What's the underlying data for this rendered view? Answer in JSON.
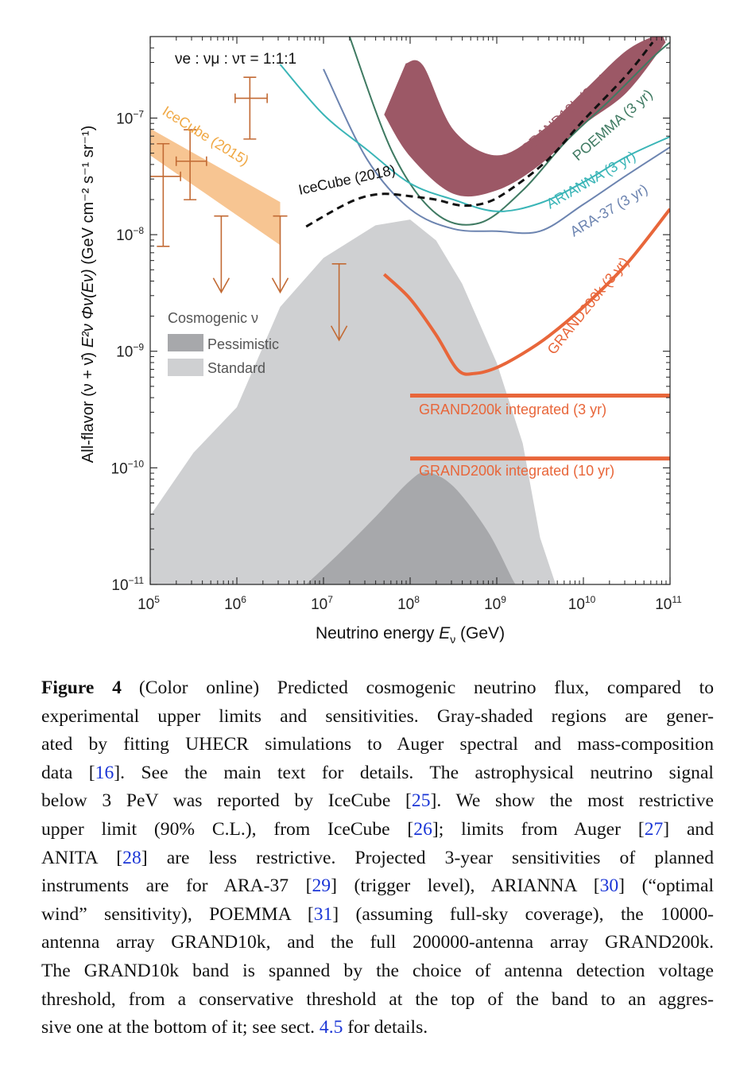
{
  "chart_data": {
    "type": "line",
    "xlabel_parts": {
      "pre": "Neutrino energy ",
      "var": "E",
      "sub": "ν",
      "post": " (GeV)"
    },
    "ylabel_parts": {
      "pre": "All-flavor  (ν + ν̄)  ",
      "expr": "E²ν Φν(Eν)",
      "post": "  (GeV cm⁻² s⁻¹ sr⁻¹)"
    },
    "xscale": "log",
    "yscale": "log",
    "xlim": [
      100000,
      100000000000
    ],
    "ylim": [
      1e-11,
      5e-07
    ],
    "x_ticks": [
      {
        "base": "10",
        "exp": "5",
        "value": 5
      },
      {
        "base": "10",
        "exp": "6",
        "value": 6
      },
      {
        "base": "10",
        "exp": "7",
        "value": 7
      },
      {
        "base": "10",
        "exp": "8",
        "value": 8
      },
      {
        "base": "10",
        "exp": "9",
        "value": 9
      },
      {
        "base": "10",
        "exp": "10",
        "value": 10
      },
      {
        "base": "10",
        "exp": "11",
        "value": 11
      }
    ],
    "y_ticks": [
      {
        "base": "10",
        "exp": "−11",
        "value": -11
      },
      {
        "base": "10",
        "exp": "−10",
        "value": -10
      },
      {
        "base": "10",
        "exp": "−9",
        "value": -9
      },
      {
        "base": "10",
        "exp": "−8",
        "value": -8
      },
      {
        "base": "10",
        "exp": "−7",
        "value": -7
      }
    ],
    "flavor_ratio": "νe : νμ : ντ = 1:1:1",
    "legend": {
      "title": "Cosmogenic ν",
      "placement": "center-left",
      "entries": [
        "Pessimistic",
        "Standard"
      ]
    },
    "colors": {
      "standard": "#cfd0d2",
      "pessimistic": "#a7a8ab",
      "icecube2015": "#f7c28c",
      "icecube2015_label": "#f0a844",
      "icecube_points": "#c26a34",
      "grand10k": "#9c5866",
      "grand200k": "#e8663a",
      "arianna": "#3ab5b7",
      "ara37": "#6c84b0",
      "poemma": "#3f7a62",
      "icecube2018": "#111111"
    },
    "series": [
      {
        "name": "Standard",
        "type": "area",
        "upper": [
          [
            5,
            -10.41
          ],
          [
            5.5,
            -9.87
          ],
          [
            6,
            -9.48
          ],
          [
            6.5,
            -8.62
          ],
          [
            7,
            -8.2
          ],
          [
            7.6,
            -7.92
          ],
          [
            8,
            -7.87
          ],
          [
            8.3,
            -8.05
          ],
          [
            8.6,
            -8.42
          ],
          [
            9,
            -9.1
          ],
          [
            9.3,
            -9.79
          ],
          [
            9.5,
            -10.6
          ],
          [
            9.68,
            -11
          ]
        ],
        "lower": -11
      },
      {
        "name": "Pessimistic",
        "type": "area",
        "upper": [
          [
            6.8,
            -11
          ],
          [
            7.2,
            -10.72
          ],
          [
            7.6,
            -10.42
          ],
          [
            8,
            -10.11
          ],
          [
            8.2,
            -10.04
          ],
          [
            8.5,
            -10.16
          ],
          [
            8.9,
            -10.55
          ],
          [
            9.2,
            -10.98
          ],
          [
            9.25,
            -11
          ]
        ],
        "lower": -11
      },
      {
        "name": "IceCube (2015)",
        "type": "band",
        "upper": [
          [
            5,
            -7.09
          ],
          [
            6.5,
            -7.72
          ]
        ],
        "lower": [
          [
            5,
            -7.32
          ],
          [
            6.5,
            -8.09
          ]
        ]
      },
      {
        "name": "IceCube HESE points",
        "type": "errorbars",
        "points": [
          {
            "x": 5.15,
            "y": -7.5,
            "xlo": 4.92,
            "xhi": 5.35,
            "ylo": -8.1,
            "yhi": -7.22
          },
          {
            "x": 5.46,
            "y": -7.37,
            "xlo": 5.3,
            "xhi": 5.65,
            "ylo": -7.7,
            "yhi": -7.1
          },
          {
            "x": 6.15,
            "y": -6.83,
            "xlo": 5.98,
            "xhi": 6.35,
            "ylo": -7.18,
            "yhi": -6.65
          }
        ],
        "upper_limits": [
          {
            "x": 5.82,
            "y": -7.84
          },
          {
            "x": 6.5,
            "y": -7.84
          },
          {
            "x": 7.18,
            "y": -8.25
          }
        ]
      },
      {
        "name": "IceCube (2018)",
        "type": "line",
        "style": "dashed",
        "points": [
          [
            6.8,
            -7.93
          ],
          [
            7.2,
            -7.76
          ],
          [
            7.45,
            -7.68
          ],
          [
            7.7,
            -7.65
          ],
          [
            8,
            -7.67
          ],
          [
            8.3,
            -7.7
          ],
          [
            8.6,
            -7.75
          ],
          [
            8.9,
            -7.72
          ],
          [
            9.2,
            -7.59
          ],
          [
            9.6,
            -7.35
          ],
          [
            10,
            -7.02
          ],
          [
            10.5,
            -6.63
          ],
          [
            10.8,
            -6.35
          ]
        ]
      },
      {
        "name": "ARIANNA (3 yr)",
        "type": "line",
        "points": [
          [
            6.5,
            -6.54
          ],
          [
            7,
            -6.97
          ],
          [
            7.5,
            -7.27
          ],
          [
            8,
            -7.56
          ],
          [
            8.5,
            -7.7
          ],
          [
            9,
            -7.8
          ],
          [
            9.5,
            -7.73
          ],
          [
            10,
            -7.55
          ],
          [
            10.5,
            -7.33
          ],
          [
            11,
            -7.16
          ]
        ]
      },
      {
        "name": "ARA-37 (3 yr)",
        "type": "line",
        "points": [
          [
            7,
            -6.58
          ],
          [
            7.5,
            -7.35
          ],
          [
            8,
            -7.78
          ],
          [
            8.5,
            -7.95
          ],
          [
            9,
            -7.97
          ],
          [
            9.5,
            -7.97
          ],
          [
            10,
            -7.74
          ],
          [
            10.5,
            -7.49
          ],
          [
            11,
            -7.25
          ]
        ]
      },
      {
        "name": "POEMMA (3 yr)",
        "type": "line",
        "points": [
          [
            7.3,
            -6.3
          ],
          [
            7.8,
            -7.3
          ],
          [
            8.3,
            -7.82
          ],
          [
            8.8,
            -7.9
          ],
          [
            9.3,
            -7.62
          ],
          [
            9.8,
            -7.2
          ],
          [
            10.3,
            -6.85
          ],
          [
            10.8,
            -6.48
          ],
          [
            11,
            -6.35
          ]
        ]
      },
      {
        "name": "GRAND10k (3 yr)",
        "type": "band",
        "upper": [
          [
            7.95,
            -6.53
          ],
          [
            8.15,
            -6.55
          ],
          [
            8.5,
            -7.1
          ],
          [
            9,
            -7.32
          ],
          [
            9.5,
            -7.12
          ],
          [
            10,
            -6.77
          ],
          [
            10.5,
            -6.42
          ],
          [
            10.9,
            -6.27
          ]
        ],
        "lower": [
          [
            7.7,
            -6.97
          ],
          [
            8,
            -7.33
          ],
          [
            8.5,
            -7.65
          ],
          [
            9,
            -7.62
          ],
          [
            9.5,
            -7.4
          ],
          [
            10,
            -7.06
          ],
          [
            10.5,
            -6.78
          ],
          [
            10.95,
            -6.35
          ]
        ]
      },
      {
        "name": "GRAND200k (3 yr)",
        "type": "line",
        "points": [
          [
            7.7,
            -8.34
          ],
          [
            8,
            -8.55
          ],
          [
            8.3,
            -8.86
          ],
          [
            8.55,
            -9.16
          ],
          [
            8.75,
            -9.19
          ],
          [
            9,
            -9.14
          ],
          [
            9.3,
            -9.02
          ],
          [
            9.6,
            -8.87
          ],
          [
            10,
            -8.62
          ],
          [
            10.5,
            -8.25
          ],
          [
            11,
            -7.78
          ]
        ]
      },
      {
        "name": "GRAND200k integrated (3 yr)",
        "type": "hline",
        "y": -9.38,
        "xrange": [
          8,
          11
        ]
      },
      {
        "name": "GRAND200k integrated (10 yr)",
        "type": "hline",
        "y": -9.92,
        "xrange": [
          8,
          11
        ]
      }
    ],
    "labels": {
      "icecube2015": "IceCube (2015)",
      "icecube2018": "IceCube (2018)",
      "grand10k": "GRAND10k (3 yr)",
      "poemma": "POEMMA (3 yr)",
      "arianna": "ARIANNA (3 yr)",
      "ara37": "ARA-37 (3 yr)",
      "grand200k": "GRAND200k (3 yr)",
      "int3": "GRAND200k integrated (3 yr)",
      "int10": "GRAND200k integrated (10 yr)"
    }
  },
  "caption": {
    "label": "Figure 4",
    "lines": [
      [
        {
          "t": "(Color online) Predicted cosmogenic neutrino flux, compared to"
        }
      ],
      [
        {
          "t": "experimental upper limits and sensitivities.  Gray-shaded regions are gener-"
        }
      ],
      [
        {
          "t": "ated by fitting UHECR simulations to Auger spectral and mass-composition"
        }
      ],
      [
        {
          "t": "data ["
        },
        {
          "t": "16",
          "ref": true
        },
        {
          "t": "].  See the main text for details.  The astrophysical neutrino signal"
        }
      ],
      [
        {
          "t": "below 3 PeV was reported by IceCube ["
        },
        {
          "t": "25",
          "ref": true
        },
        {
          "t": "].  We show the most restrictive"
        }
      ],
      [
        {
          "t": "upper limit (90% C.L.), from IceCube ["
        },
        {
          "t": "26",
          "ref": true
        },
        {
          "t": "]; limits from Auger ["
        },
        {
          "t": "27",
          "ref": true
        },
        {
          "t": "] and"
        }
      ],
      [
        {
          "t": "ANITA ["
        },
        {
          "t": "28",
          "ref": true
        },
        {
          "t": "] are less restrictive.  Projected 3-year sensitivities of planned"
        }
      ],
      [
        {
          "t": "instruments are for ARA-37 ["
        },
        {
          "t": "29",
          "ref": true
        },
        {
          "t": "] (trigger level), ARIANNA ["
        },
        {
          "t": "30",
          "ref": true
        },
        {
          "t": "] (“optimal"
        }
      ],
      [
        {
          "t": "wind” sensitivity), POEMMA ["
        },
        {
          "t": "31",
          "ref": true
        },
        {
          "t": "] (assuming full-sky coverage), the 10000-"
        }
      ],
      [
        {
          "t": "antenna array GRAND10k, and the full 200000-antenna array GRAND200k."
        }
      ],
      [
        {
          "t": "The GRAND10k band is spanned by the choice of antenna detection voltage"
        }
      ],
      [
        {
          "t": "threshold, from a conservative threshold at the top of the band to an aggres-"
        }
      ],
      [
        {
          "t": "sive one at the bottom of it; see sect. "
        },
        {
          "t": "4.5",
          "ref": true
        },
        {
          "t": " for details."
        }
      ]
    ]
  }
}
